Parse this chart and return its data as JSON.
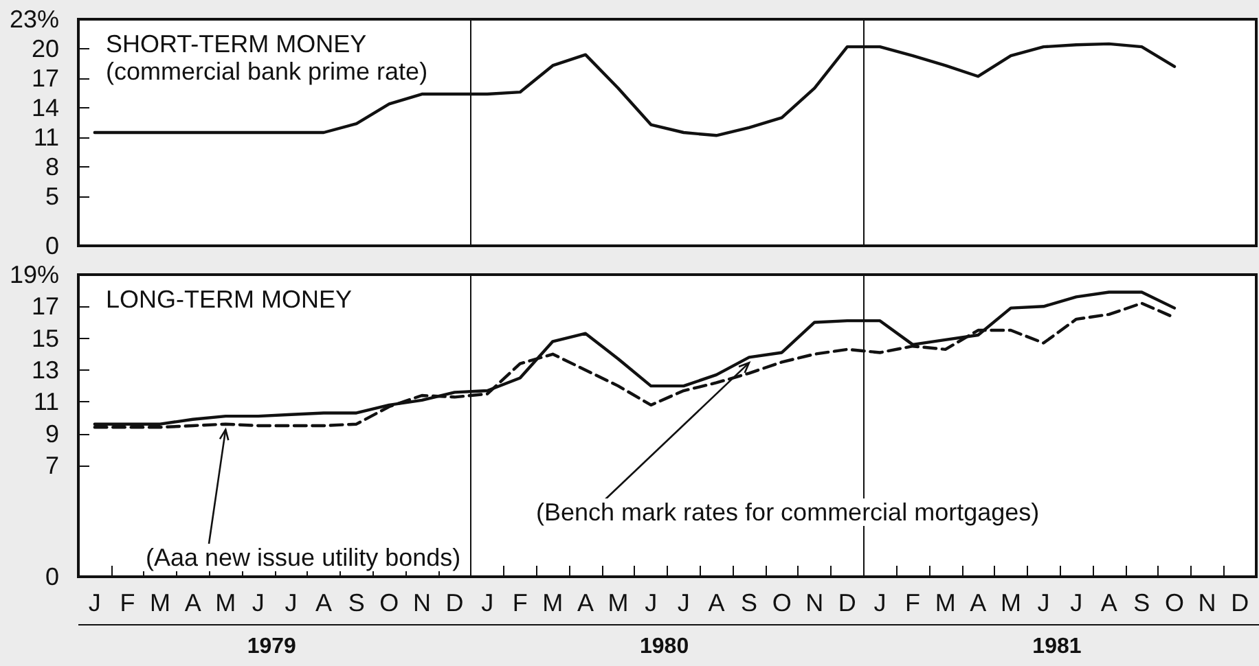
{
  "chart_data": [
    {
      "type": "line",
      "title": "SHORT-TERM MONEY",
      "subtitle": "(commercial bank prime rate)",
      "categories": [
        null,
        null,
        null,
        null,
        null,
        null,
        null,
        null,
        null,
        null,
        null,
        null,
        null,
        null,
        null,
        null,
        null,
        null,
        null,
        null,
        null,
        null,
        null,
        null,
        null,
        null,
        null,
        null,
        null,
        null,
        null,
        null,
        null,
        null,
        null,
        null
      ],
      "series": [
        {
          "color": "#111111",
          "line_style": "solid",
          "values": [
            11.5,
            11.5,
            11.5,
            11.5,
            11.5,
            11.5,
            11.5,
            11.5,
            12.4,
            14.4,
            15.4,
            15.4,
            15.4,
            15.6,
            18.3,
            19.4,
            16.0,
            12.3,
            11.5,
            11.2,
            12.0,
            13.0,
            16.0,
            20.2,
            20.2,
            19.3,
            18.3,
            17.2,
            19.3,
            20.2,
            20.4,
            20.5,
            20.2,
            18.2,
            null,
            null
          ]
        }
      ],
      "ylim": [
        0,
        23
      ],
      "yticks": [
        0,
        5,
        8,
        11,
        14,
        17,
        20,
        {
          "value": 23,
          "label": "23%"
        }
      ],
      "grid": "x",
      "marker": "none",
      "tick_labels": "y"
    },
    {
      "type": "line",
      "title": "LONG-TERM MONEY",
      "categories": [
        "J",
        "F",
        "M",
        "A",
        "M",
        "J",
        "J",
        "A",
        "S",
        "O",
        "N",
        "D",
        "J",
        "F",
        "M",
        "A",
        "M",
        "J",
        "J",
        "A",
        "S",
        "O",
        "N",
        "D",
        "J",
        "F",
        "M",
        "A",
        "M",
        "J",
        "J",
        "A",
        "S",
        "O",
        "N",
        "D"
      ],
      "series": [
        {
          "name": "(Bench mark rates for commercial mortgages)",
          "color": "#111111",
          "line_style": "solid",
          "values": [
            9.6,
            9.6,
            9.6,
            9.9,
            10.1,
            10.1,
            10.2,
            10.3,
            10.3,
            10.8,
            11.1,
            11.6,
            11.7,
            12.5,
            14.8,
            15.3,
            13.7,
            12.0,
            12.0,
            12.7,
            13.8,
            14.1,
            16.0,
            16.1,
            16.1,
            14.6,
            14.9,
            15.2,
            16.9,
            17.0,
            17.6,
            17.9,
            17.9,
            16.9,
            null,
            null
          ]
        },
        {
          "name": "(Aaa new issue utility bonds)",
          "color": "#111111",
          "line_style": "dashed",
          "values": [
            9.4,
            9.4,
            9.4,
            9.5,
            9.6,
            9.5,
            9.5,
            9.5,
            9.6,
            10.7,
            11.4,
            11.3,
            11.5,
            13.4,
            14.0,
            13.0,
            12.0,
            10.8,
            11.7,
            12.2,
            12.8,
            13.5,
            14.0,
            14.3,
            14.1,
            14.5,
            14.3,
            15.5,
            15.5,
            14.7,
            16.2,
            16.5,
            17.2,
            16.3,
            null,
            null
          ]
        }
      ],
      "ylim": [
        0,
        19
      ],
      "yticks": [
        0,
        7,
        9,
        11,
        13,
        15,
        17,
        {
          "value": 19,
          "label": "19%"
        }
      ],
      "grid": "x",
      "marker": "none",
      "annotations": [
        "1979",
        "1980",
        "1981"
      ]
    }
  ]
}
